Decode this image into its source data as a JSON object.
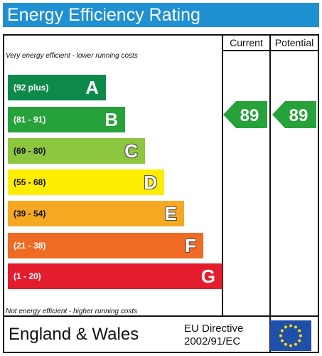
{
  "title": "Energy Efficiency Rating",
  "columns": {
    "current": "Current",
    "potential": "Potential"
  },
  "top_note": "Very energy efficient - lower running costs",
  "bottom_note": "Not energy efficient - higher running costs",
  "colors": {
    "header": "#1f90d1",
    "A": "#0d8a4a",
    "B": "#27a23a",
    "C": "#8dc63f",
    "D": "#ffed00",
    "E": "#f7a823",
    "F": "#ef6b23",
    "G": "#e31d2d"
  },
  "chart_data": {
    "type": "bar",
    "categories": [
      "A",
      "B",
      "C",
      "D",
      "E",
      "F",
      "G"
    ],
    "ranges": [
      "(92 plus)",
      "(81 - 91)",
      "(69 - 80)",
      "(55 - 68)",
      "(39 - 54)",
      "(21 - 38)",
      "(1 - 20)"
    ],
    "current": {
      "value": 89,
      "band": "B"
    },
    "potential": {
      "value": 89,
      "band": "B"
    }
  },
  "footer": {
    "country": "England & Wales",
    "directive_line1": "EU Directive",
    "directive_line2": "2002/91/EC",
    "flag_icon": "eu-flag-icon"
  }
}
